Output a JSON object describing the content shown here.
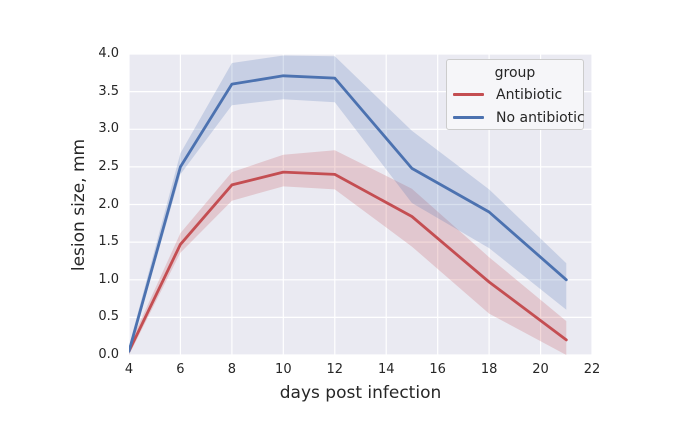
{
  "figure": {
    "background": "#ffffff",
    "plot_background": "#eaeaf2",
    "grid_color": "#ffffff",
    "text_color": "#262626",
    "legend_background": "#f6f6f9",
    "legend_border": "#cccccc"
  },
  "chart_data": {
    "type": "line",
    "title": "",
    "xlabel": "days post infection",
    "ylabel": "lesion size, mm",
    "xlim": [
      4,
      22
    ],
    "ylim": [
      0,
      4
    ],
    "x_ticks": [
      4,
      6,
      8,
      10,
      12,
      14,
      16,
      18,
      20,
      22
    ],
    "y_ticks": [
      "0.0",
      "0.5",
      "1.0",
      "1.5",
      "2.0",
      "2.5",
      "3.0",
      "3.5",
      "4.0"
    ],
    "grid": true,
    "legend_position": "upper right",
    "band_alpha": 0.22,
    "x": [
      4,
      6,
      8,
      10,
      12,
      15,
      18,
      21
    ],
    "series": [
      {
        "name": "Antibiotic",
        "color": "#c44e52",
        "values": [
          0.05,
          1.47,
          2.26,
          2.43,
          2.4,
          1.84,
          0.97,
          0.2
        ],
        "ci_low": [
          0.0,
          1.36,
          2.05,
          2.24,
          2.2,
          1.44,
          0.55,
          0.0
        ],
        "ci_high": [
          0.12,
          1.62,
          2.43,
          2.66,
          2.72,
          2.21,
          1.3,
          0.45
        ]
      },
      {
        "name": "No antibiotic",
        "color": "#4c72b0",
        "values": [
          0.05,
          2.5,
          3.6,
          3.71,
          3.68,
          2.48,
          1.9,
          1.0
        ],
        "ci_low": [
          0.0,
          2.4,
          3.32,
          3.4,
          3.36,
          2.02,
          1.42,
          0.6
        ],
        "ci_high": [
          0.12,
          2.68,
          3.88,
          3.98,
          3.97,
          2.98,
          2.2,
          1.22
        ]
      }
    ]
  },
  "legend": {
    "title": "group",
    "entries": [
      {
        "label": "Antibiotic",
        "color": "#c44e52"
      },
      {
        "label": "No antibiotic",
        "color": "#4c72b0"
      }
    ]
  }
}
